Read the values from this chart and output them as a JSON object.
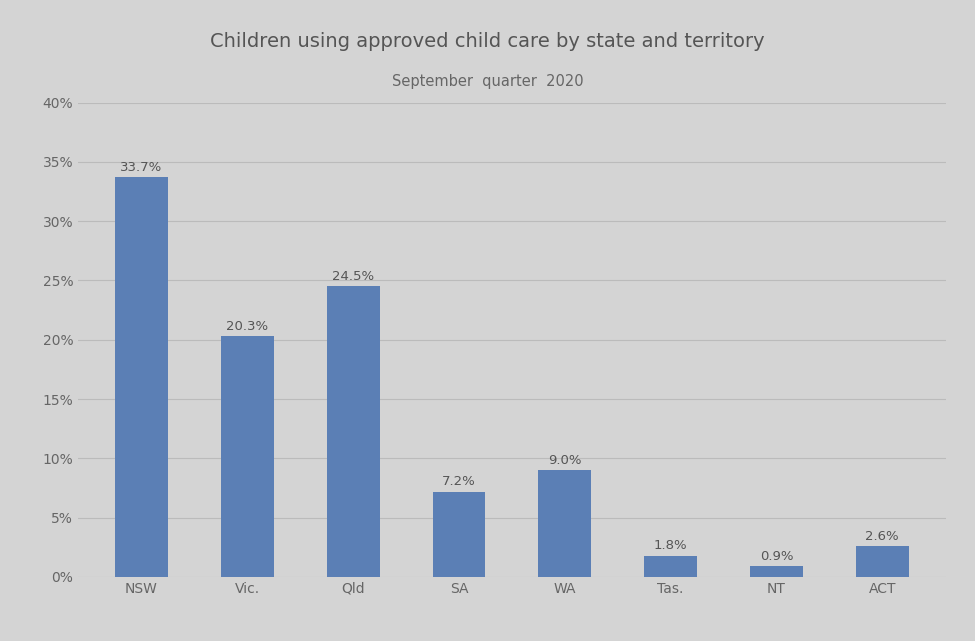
{
  "title": "Children using approved child care by state and territory",
  "subtitle": "September  quarter  2020",
  "categories": [
    "NSW",
    "Vic.",
    "Qld",
    "SA",
    "WA",
    "Tas.",
    "NT",
    "ACT"
  ],
  "values": [
    33.7,
    20.3,
    24.5,
    7.2,
    9.0,
    1.8,
    0.9,
    2.6
  ],
  "bar_color": "#5b7fb5",
  "background_color": "#d4d4d4",
  "ylim": [
    0,
    40
  ],
  "yticks": [
    0,
    5,
    10,
    15,
    20,
    25,
    30,
    35,
    40
  ],
  "title_fontsize": 14,
  "subtitle_fontsize": 10.5,
  "tick_fontsize": 10,
  "value_label_fontsize": 9.5,
  "title_color": "#555555",
  "subtitle_color": "#666666",
  "tick_color": "#666666",
  "value_label_color": "#555555",
  "grid_color": "#bbbbbb",
  "bar_width": 0.5
}
